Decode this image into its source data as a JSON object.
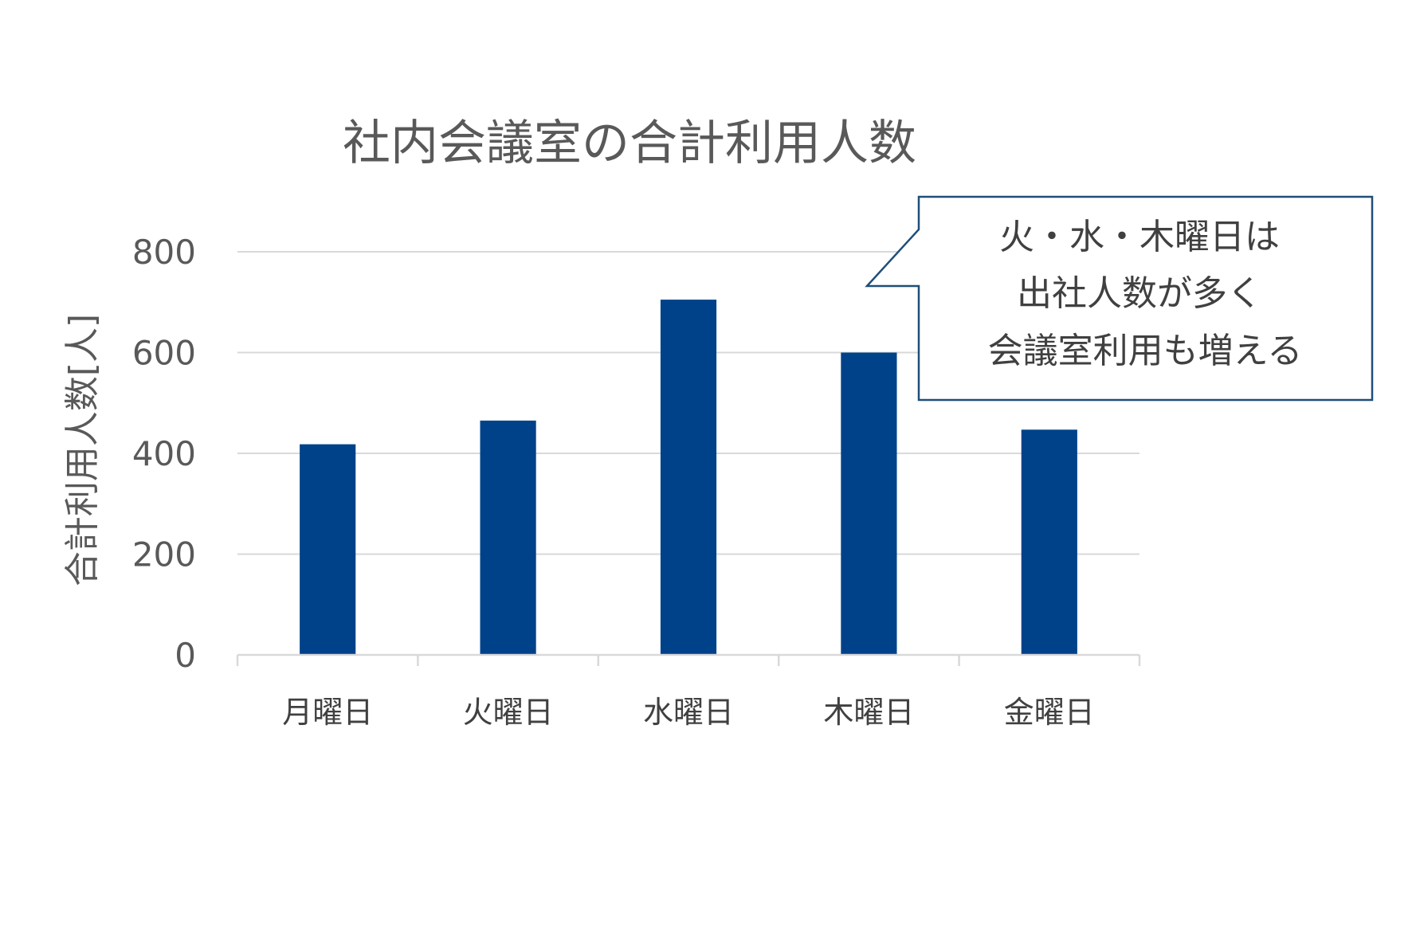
{
  "chart_data": {
    "type": "bar",
    "title": "社内会議室の合計利用人数",
    "ylabel": "合計利用人数[人]",
    "xlabel": "",
    "categories": [
      "月曜日",
      "火曜日",
      "水曜日",
      "木曜日",
      "金曜日"
    ],
    "values": [
      418,
      465,
      705,
      600,
      447
    ],
    "ylim": [
      0,
      800
    ],
    "yticks": [
      "0",
      "200",
      "400",
      "600",
      "800"
    ],
    "grid": true,
    "bar_color": "#00428A",
    "annotation": {
      "lines": [
        "火・水・木曜日は",
        "出社人数が多く",
        "会議室利用も増える"
      ],
      "border_color": "#1F4E79"
    }
  }
}
